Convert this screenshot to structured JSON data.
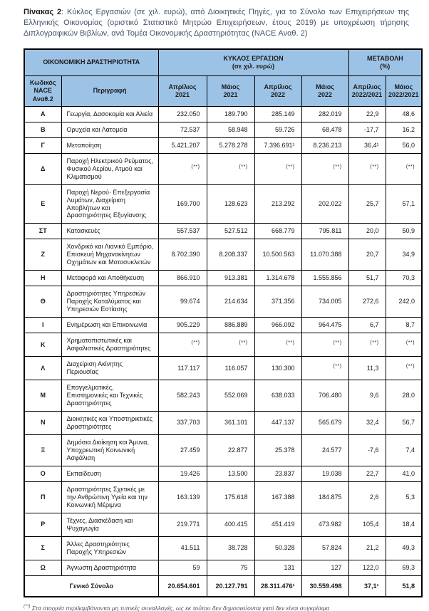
{
  "title": {
    "label": "Πίνακας 2",
    "text": ": Κύκλος Εργασιών (σε χιλ. ευρώ), από Διοικητικές Πηγές, για το Σύνολο των Επιχειρήσεων της Ελληνικής Οικονομίας (οριστικό Στατιστικό Μητρώο Επιχειρήσεων, έτους 2019) με υποχρέωση τήρησης Διπλογραφικών Βιβλίων, ανά Τομέα Οικονομικής Δραστηριότητας (NACE Αναθ. 2)"
  },
  "table": {
    "header": {
      "group_activity": "ΟΙΚΟΝΟΜΙΚΗ ΔΡΑΣΤΗΡΙΟΤΗΤΑ",
      "group_turnover": "ΚΥΚΛΟΣ ΕΡΓΑΣΙΩΝ\n(σε χιλ. ευρώ)",
      "group_change": "ΜΕΤΑΒΟΛΗ\n(%)",
      "col_code": "Κωδικός\nNACE\nΑναθ.2",
      "col_desc": "Περιγραφή",
      "cols": [
        "Απρίλιος\n2021",
        "Μάιος\n2021",
        "Απρίλιος\n2022",
        "Μάιος\n2022",
        "Απρίλιος\n2022/2021",
        "Μάιος\n2022/2021"
      ]
    },
    "rows": [
      {
        "code": "Α",
        "desc": "Γεωργία, Δασοκομία και Αλιεία",
        "values": [
          "232.050",
          "189.790",
          "285.149",
          "282.019",
          "22,9",
          "48,6"
        ]
      },
      {
        "code": "Β",
        "desc": "Ορυχεία και Λατομεία",
        "values": [
          "72.537",
          "58.948",
          "59.726",
          "68.478",
          "-17,7",
          "16,2"
        ]
      },
      {
        "code": "Γ",
        "desc": "Μεταποίηση",
        "values": [
          "5.421.207",
          "5.278.278",
          "7.396.691¹",
          "8.236.213",
          "36,4¹",
          "56,0"
        ]
      },
      {
        "code": "Δ",
        "desc": "Παροχή Ηλεκτρικού Ρεύματος, Φυσικού Αερίου, Ατμού και Κλιματισμού",
        "values": [
          "(**)",
          "(**)",
          "(**)",
          "(**)",
          "(**)",
          "(**)"
        ]
      },
      {
        "code": "Ε",
        "desc": "Παροχή Νερού· Επεξεργασία Λυμάτων, Διαχείριση Αποβλήτων και Δραστηριότητες Εξυγίανσης",
        "values": [
          "169.700",
          "128.623",
          "213.292",
          "202.022",
          "25,7",
          "57,1"
        ]
      },
      {
        "code": "ΣΤ",
        "desc": "Κατασκευές",
        "values": [
          "557.537",
          "527.512",
          "668.779",
          "795.811",
          "20,0",
          "50,9"
        ]
      },
      {
        "code": "Ζ",
        "desc": "Χονδρικό και Λιανικό Εμπόριο, Επισκευή Μηχανοκίνητων Οχημάτων και Μοτοσυκλετών",
        "values": [
          "8.702.390",
          "8.208.337",
          "10.500.563",
          "11.070.388",
          "20,7",
          "34,9"
        ]
      },
      {
        "code": "Η",
        "desc": "Μεταφορά και Αποθήκευση",
        "values": [
          "866.910",
          "913.381",
          "1.314.678",
          "1.555.856",
          "51,7",
          "70,3"
        ]
      },
      {
        "code": "Θ",
        "desc": "Δραστηριότητες Υπηρεσιών Παροχής Καταλύματος και Υπηρεσιών Εστίασης",
        "values": [
          "99.674",
          "214.634",
          "371.356",
          "734.005",
          "272,6",
          "242,0"
        ]
      },
      {
        "code": "Ι",
        "desc": "Ενημέρωση και Επικοινωνία",
        "values": [
          "905.229",
          "886.889",
          "966.092",
          "964.475",
          "6,7",
          "8,7"
        ]
      },
      {
        "code": "Κ",
        "desc": "Χρηματοπιστωτικές και Ασφαλιστικές Δραστηριότητες",
        "values": [
          "(**)",
          "(**)",
          "(**)",
          "(**)",
          "(**)",
          "(**)"
        ]
      },
      {
        "code": "Λ",
        "desc": "Διαχείριση Ακίνητης Περιουσίας",
        "values": [
          "117.117",
          "116.057",
          "130.300",
          "(**)",
          "11,3",
          "(**)"
        ]
      },
      {
        "code": "Μ",
        "desc": "Επαγγελματικές, Επιστημονικές και Τεχνικές Δραστηριότητες",
        "values": [
          "582.243",
          "552.069",
          "638.033",
          "706.480",
          "9,6",
          "28,0"
        ]
      },
      {
        "code": "Ν",
        "desc": "Διοικητικές και Υποστηρικτικές Δραστηριότητες",
        "values": [
          "337.703",
          "361.101",
          "447.137",
          "565.679",
          "32,4",
          "56,7"
        ]
      },
      {
        "code": "Ξ",
        "desc": "Δημόσια Διοίκηση και Άμυνα, Υποχρεωτική Κοινωνική Ασφάλιση",
        "values": [
          "27.459",
          "22.877",
          "25.378",
          "24.577",
          "-7,6",
          "7,4"
        ]
      },
      {
        "code": "Ο",
        "desc": "Εκπαίδευση",
        "values": [
          "19.426",
          "13.500",
          "23.837",
          "19.038",
          "22,7",
          "41,0"
        ]
      },
      {
        "code": "Π",
        "desc": "Δραστηριότητες Σχετικές με την Ανθρώπινη Υγεία και την Κοινωνική Μέριμνα",
        "values": [
          "163.139",
          "175.618",
          "167.388",
          "184.875",
          "2,6",
          "5,3"
        ]
      },
      {
        "code": "Ρ",
        "desc": "Τέχνες, Διασκέδαση και Ψυχαγωγία",
        "values": [
          "219.771",
          "400.415",
          "451.419",
          "473.982",
          "105,4",
          "18,4"
        ]
      },
      {
        "code": "Σ",
        "desc": "Άλλες Δραστηριότητες Παροχής Υπηρεσιών",
        "values": [
          "41.511",
          "38.728",
          "50.328",
          "57.824",
          "21,2",
          "49,3"
        ]
      },
      {
        "code": "Ω",
        "desc": "Άγνωστη Δραστηριότητα",
        "values": [
          "59",
          "75",
          "131",
          "127",
          "122,0",
          "69,3"
        ]
      }
    ],
    "total": {
      "label": "Γενικό Σύνολο",
      "values": [
        "20.654.601",
        "20.127.791",
        "28.311.476¹",
        "30.559.498",
        "37,1¹",
        "51,8"
      ]
    }
  },
  "footnote": {
    "marker": "(**)",
    "text": "Στα στοιχεία περιλαμβάνονται μη τυπικές συναλλαγές, ως εκ τούτου δεν δημοσιεύονται γιατί δεν είναι συγκρίσιμα"
  },
  "colors": {
    "header_bg": "#9CC3E6",
    "border": "#000000",
    "title_text": "#44546A"
  }
}
